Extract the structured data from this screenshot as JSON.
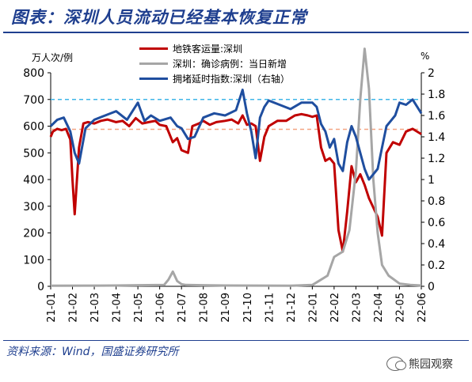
{
  "header": {
    "title": "图表：深圳人员流动已经基本恢复正常"
  },
  "footer": {
    "source": "资料来源：Wind，国盛证券研究所",
    "watermark": "熊园观察"
  },
  "colors": {
    "metro": "#c00000",
    "cases": "#a6a6a6",
    "congestion": "#1f4e9f",
    "ref_left": "#f4a582",
    "ref_right": "#3fb6e8",
    "brand": "#1f3f8f"
  },
  "chart_data": {
    "type": "line",
    "y_left_unit": "万人次/例",
    "y_right_unit": "%",
    "ylim_left": [
      0,
      800
    ],
    "ylim_right": [
      0,
      2
    ],
    "yticks_left": [
      "0",
      "100",
      "200",
      "300",
      "400",
      "500",
      "600",
      "700",
      "800"
    ],
    "yticks_right": [
      "0",
      "0.2",
      "0.4",
      "0.6",
      "0.8",
      "1",
      "1.2",
      "1.4",
      "1.6",
      "1.8",
      "2"
    ],
    "x_ticks": [
      "21-01",
      "21-02",
      "21-03",
      "21-04",
      "21-05",
      "21-06",
      "21-07",
      "21-08",
      "21-09",
      "21-10",
      "21-11",
      "21-12",
      "22-01",
      "22-02",
      "22-03",
      "22-04",
      "22-05",
      "22-06"
    ],
    "legend": [
      {
        "label": "地铁客运量:深圳",
        "color": "#c00000"
      },
      {
        "label": "深圳：确诊病例：当日新增",
        "color": "#a6a6a6"
      },
      {
        "label": "拥堵延时指数:深圳（右轴）",
        "color": "#1f4e9f"
      }
    ],
    "reference_lines": [
      {
        "axis": "left",
        "value": 588,
        "color": "#f4a582"
      },
      {
        "axis": "right",
        "value": 1.75,
        "color": "#3fb6e8"
      }
    ],
    "series": [
      {
        "name": "地铁客运量:深圳",
        "axis": "left",
        "x": [
          0,
          0.1,
          0.3,
          0.5,
          0.7,
          0.9,
          1.0,
          1.1,
          1.3,
          1.5,
          1.7,
          2.0,
          2.3,
          2.6,
          3.0,
          3.3,
          3.6,
          3.9,
          4.2,
          4.5,
          4.8,
          5.0,
          5.3,
          5.6,
          5.8,
          6.0,
          6.3,
          6.5,
          6.8,
          7.0,
          7.3,
          7.6,
          8.0,
          8.3,
          8.6,
          8.8,
          9.0,
          9.2,
          9.4,
          9.6,
          9.8,
          10.0,
          10.4,
          10.8,
          11.2,
          11.5,
          11.8,
          12.0,
          12.2,
          12.4,
          12.6,
          12.8,
          13.0,
          13.2,
          13.4,
          13.6,
          13.8,
          14.0,
          14.2,
          14.4,
          14.6,
          15.0,
          15.2,
          15.4,
          15.7,
          16.0,
          16.3,
          16.6,
          17.0
        ],
        "values": [
          560,
          580,
          590,
          585,
          590,
          550,
          400,
          270,
          520,
          610,
          615,
          610,
          620,
          625,
          615,
          620,
          600,
          630,
          610,
          615,
          620,
          605,
          600,
          540,
          555,
          510,
          500,
          600,
          610,
          620,
          605,
          615,
          620,
          625,
          610,
          640,
          605,
          610,
          600,
          470,
          560,
          600,
          620,
          620,
          640,
          645,
          640,
          635,
          640,
          520,
          470,
          480,
          460,
          210,
          130,
          280,
          450,
          390,
          420,
          380,
          330,
          260,
          190,
          500,
          540,
          530,
          580,
          590,
          570
        ]
      },
      {
        "name": "深圳：确诊病例：当日新增",
        "axis": "left",
        "x": [
          0,
          3.0,
          5.2,
          5.4,
          5.6,
          5.8,
          6.0,
          6.2,
          8.0,
          11.0,
          12.0,
          12.3,
          12.7,
          13.0,
          13.4,
          13.7,
          14.0,
          14.2,
          14.4,
          14.6,
          14.8,
          15.0,
          15.2,
          15.5,
          16.0,
          16.5,
          17.0
        ],
        "values": [
          2,
          3,
          5,
          25,
          55,
          20,
          8,
          5,
          3,
          2,
          5,
          20,
          40,
          110,
          130,
          210,
          430,
          700,
          890,
          740,
          400,
          200,
          80,
          40,
          10,
          5,
          3
        ]
      },
      {
        "name": "拥堵延时指数:深圳（右轴）",
        "axis": "right",
        "x": [
          0,
          0.3,
          0.6,
          0.9,
          1.1,
          1.3,
          1.6,
          2.0,
          2.5,
          3.0,
          3.5,
          4.0,
          4.3,
          4.6,
          5.0,
          5.5,
          5.8,
          6.0,
          6.3,
          6.6,
          7.0,
          7.5,
          8.0,
          8.5,
          8.8,
          9.0,
          9.2,
          9.4,
          9.6,
          9.8,
          10.0,
          10.5,
          11.0,
          11.5,
          12.0,
          12.2,
          12.4,
          12.6,
          12.8,
          13.0,
          13.2,
          13.4,
          13.6,
          13.8,
          14.0,
          14.2,
          14.4,
          14.6,
          14.8,
          15.0,
          15.2,
          15.4,
          15.6,
          15.8,
          16.0,
          16.3,
          16.6,
          17.0
        ],
        "values": [
          1.5,
          1.56,
          1.58,
          1.45,
          1.25,
          1.15,
          1.48,
          1.56,
          1.6,
          1.64,
          1.56,
          1.72,
          1.55,
          1.6,
          1.55,
          1.58,
          1.5,
          1.48,
          1.38,
          1.4,
          1.58,
          1.62,
          1.6,
          1.65,
          1.84,
          1.62,
          1.45,
          1.2,
          1.58,
          1.68,
          1.74,
          1.7,
          1.66,
          1.72,
          1.72,
          1.68,
          1.52,
          1.45,
          1.3,
          1.38,
          1.15,
          1.08,
          1.35,
          1.5,
          1.4,
          1.25,
          1.1,
          1.0,
          1.05,
          1.1,
          1.3,
          1.5,
          1.55,
          1.6,
          1.72,
          1.7,
          1.75,
          1.62
        ]
      }
    ]
  }
}
